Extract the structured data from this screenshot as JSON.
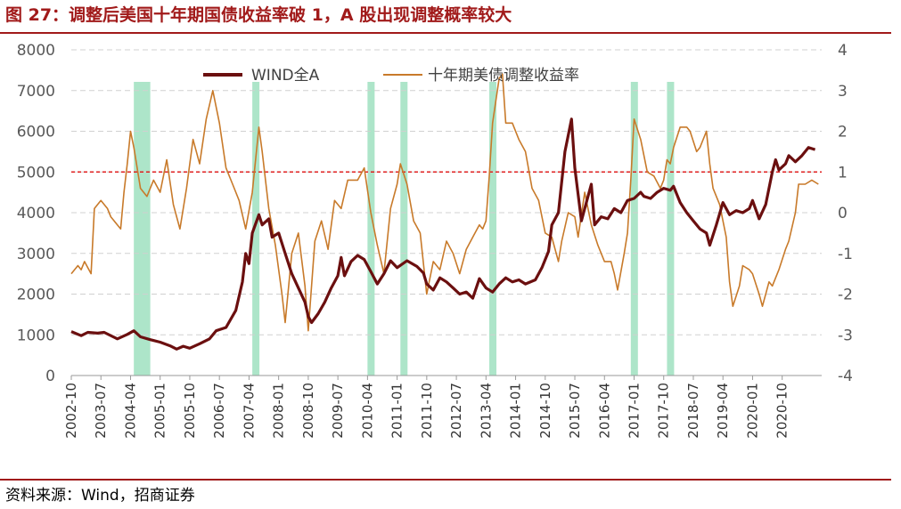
{
  "title": "图 27：调整后美国十年期国债收益率破 1，A 股出现调整概率较大",
  "source": "资料来源：Wind，招商证券",
  "colors": {
    "primary": "#6b0f0f",
    "secondary": "#c87a2a",
    "band": "#9fe0c0",
    "threshold": "#e02020",
    "title": "#a11a1a"
  },
  "chart_data": {
    "type": "line",
    "title": "",
    "xlabel": "",
    "ylabel": "",
    "ylim": [
      0,
      8000
    ],
    "y2lim": [
      -4,
      4
    ],
    "yticks": [
      0,
      1000,
      2000,
      3000,
      4000,
      5000,
      6000,
      7000,
      8000
    ],
    "y2ticks": [
      -4,
      -3,
      -2,
      -1,
      0,
      1,
      2,
      3,
      4
    ],
    "xlim": [
      "2002-10",
      "2021-10"
    ],
    "xticks": [
      "2002-10",
      "2003-07",
      "2004-04",
      "2005-01",
      "2005-10",
      "2006-07",
      "2007-04",
      "2008-01",
      "2008-10",
      "2009-07",
      "2010-04",
      "2011-01",
      "2011-10",
      "2012-07",
      "2013-04",
      "2014-01",
      "2014-10",
      "2015-07",
      "2016-04",
      "2017-01",
      "2017-10",
      "2018-07",
      "2019-04",
      "2020-01",
      "2020-10"
    ],
    "grid": "horizontal-dashed",
    "legend_position": "top",
    "threshold_line": {
      "axis": "right",
      "value": 1
    },
    "highlight_bands": [
      {
        "start": "2004-05",
        "end": "2004-10"
      },
      {
        "start": "2007-05",
        "end": "2007-07"
      },
      {
        "start": "2010-04",
        "end": "2010-06"
      },
      {
        "start": "2011-02",
        "end": "2011-04"
      },
      {
        "start": "2013-05",
        "end": "2013-07"
      },
      {
        "start": "2016-12",
        "end": "2017-02"
      },
      {
        "start": "2017-11",
        "end": "2018-01"
      }
    ],
    "series": [
      {
        "name": "WIND全A",
        "axis": "left",
        "points": [
          [
            "2002-10",
            1080
          ],
          [
            "2003-01",
            980
          ],
          [
            "2003-03",
            1060
          ],
          [
            "2003-06",
            1040
          ],
          [
            "2003-08",
            1060
          ],
          [
            "2003-12",
            900
          ],
          [
            "2004-03",
            1010
          ],
          [
            "2004-05",
            1100
          ],
          [
            "2004-07",
            950
          ],
          [
            "2004-10",
            880
          ],
          [
            "2005-01",
            820
          ],
          [
            "2005-04",
            730
          ],
          [
            "2005-06",
            650
          ],
          [
            "2005-08",
            720
          ],
          [
            "2005-10",
            670
          ],
          [
            "2006-01",
            780
          ],
          [
            "2006-04",
            900
          ],
          [
            "2006-06",
            1100
          ],
          [
            "2006-09",
            1180
          ],
          [
            "2006-12",
            1600
          ],
          [
            "2007-02",
            2300
          ],
          [
            "2007-03",
            3000
          ],
          [
            "2007-04",
            2750
          ],
          [
            "2007-05",
            3500
          ],
          [
            "2007-07",
            3950
          ],
          [
            "2007-08",
            3700
          ],
          [
            "2007-10",
            3850
          ],
          [
            "2007-11",
            3400
          ],
          [
            "2008-01",
            3500
          ],
          [
            "2008-03",
            3000
          ],
          [
            "2008-05",
            2500
          ],
          [
            "2008-07",
            2150
          ],
          [
            "2008-09",
            1800
          ],
          [
            "2008-10",
            1450
          ],
          [
            "2008-11",
            1300
          ],
          [
            "2009-01",
            1520
          ],
          [
            "2009-03",
            1800
          ],
          [
            "2009-05",
            2150
          ],
          [
            "2009-07",
            2450
          ],
          [
            "2009-08",
            2900
          ],
          [
            "2009-09",
            2450
          ],
          [
            "2009-11",
            2800
          ],
          [
            "2010-01",
            2950
          ],
          [
            "2010-03",
            2850
          ],
          [
            "2010-05",
            2550
          ],
          [
            "2010-07",
            2250
          ],
          [
            "2010-09",
            2500
          ],
          [
            "2010-11",
            2820
          ],
          [
            "2011-01",
            2650
          ],
          [
            "2011-04",
            2820
          ],
          [
            "2011-07",
            2680
          ],
          [
            "2011-09",
            2520
          ],
          [
            "2011-10",
            2250
          ],
          [
            "2011-12",
            2100
          ],
          [
            "2012-02",
            2400
          ],
          [
            "2012-04",
            2300
          ],
          [
            "2012-06",
            2150
          ],
          [
            "2012-08",
            2000
          ],
          [
            "2012-10",
            2050
          ],
          [
            "2012-12",
            1900
          ],
          [
            "2013-02",
            2380
          ],
          [
            "2013-04",
            2150
          ],
          [
            "2013-06",
            2050
          ],
          [
            "2013-08",
            2250
          ],
          [
            "2013-10",
            2400
          ],
          [
            "2013-12",
            2300
          ],
          [
            "2014-02",
            2350
          ],
          [
            "2014-04",
            2250
          ],
          [
            "2014-07",
            2350
          ],
          [
            "2014-09",
            2650
          ],
          [
            "2014-11",
            3050
          ],
          [
            "2014-12",
            3700
          ],
          [
            "2015-02",
            4000
          ],
          [
            "2015-04",
            5500
          ],
          [
            "2015-06",
            6300
          ],
          [
            "2015-07",
            5100
          ],
          [
            "2015-08",
            4450
          ],
          [
            "2015-09",
            3800
          ],
          [
            "2015-11",
            4400
          ],
          [
            "2015-12",
            4700
          ],
          [
            "2016-01",
            3700
          ],
          [
            "2016-03",
            3900
          ],
          [
            "2016-05",
            3850
          ],
          [
            "2016-07",
            4100
          ],
          [
            "2016-09",
            4000
          ],
          [
            "2016-11",
            4300
          ],
          [
            "2017-01",
            4350
          ],
          [
            "2017-03",
            4500
          ],
          [
            "2017-04",
            4400
          ],
          [
            "2017-06",
            4350
          ],
          [
            "2017-08",
            4500
          ],
          [
            "2017-10",
            4600
          ],
          [
            "2017-12",
            4550
          ],
          [
            "2018-01",
            4650
          ],
          [
            "2018-03",
            4250
          ],
          [
            "2018-05",
            4000
          ],
          [
            "2018-07",
            3800
          ],
          [
            "2018-09",
            3600
          ],
          [
            "2018-11",
            3500
          ],
          [
            "2018-12",
            3200
          ],
          [
            "2019-02",
            3700
          ],
          [
            "2019-04",
            4250
          ],
          [
            "2019-06",
            3950
          ],
          [
            "2019-08",
            4050
          ],
          [
            "2019-10",
            4000
          ],
          [
            "2019-12",
            4100
          ],
          [
            "2020-01",
            4300
          ],
          [
            "2020-03",
            3850
          ],
          [
            "2020-05",
            4200
          ],
          [
            "2020-07",
            5000
          ],
          [
            "2020-08",
            5300
          ],
          [
            "2020-09",
            5050
          ],
          [
            "2020-11",
            5200
          ],
          [
            "2020-12",
            5400
          ],
          [
            "2021-02",
            5250
          ],
          [
            "2021-04",
            5400
          ],
          [
            "2021-06",
            5600
          ],
          [
            "2021-08",
            5550
          ]
        ]
      },
      {
        "name": "十年期美债调整收益率",
        "axis": "right",
        "points": [
          [
            "2002-10",
            -1.5
          ],
          [
            "2002-12",
            -1.3
          ],
          [
            "2003-01",
            -1.4
          ],
          [
            "2003-02",
            -1.2
          ],
          [
            "2003-04",
            -1.5
          ],
          [
            "2003-05",
            0.1
          ],
          [
            "2003-07",
            0.3
          ],
          [
            "2003-09",
            0.1
          ],
          [
            "2003-10",
            -0.1
          ],
          [
            "2003-12",
            -0.3
          ],
          [
            "2004-01",
            -0.4
          ],
          [
            "2004-02",
            0.5
          ],
          [
            "2004-03",
            1.2
          ],
          [
            "2004-04",
            2.0
          ],
          [
            "2004-05",
            1.6
          ],
          [
            "2004-07",
            0.6
          ],
          [
            "2004-09",
            0.4
          ],
          [
            "2004-11",
            0.8
          ],
          [
            "2005-01",
            0.5
          ],
          [
            "2005-03",
            1.3
          ],
          [
            "2005-05",
            0.2
          ],
          [
            "2005-07",
            -0.4
          ],
          [
            "2005-09",
            0.6
          ],
          [
            "2005-11",
            1.8
          ],
          [
            "2006-01",
            1.2
          ],
          [
            "2006-03",
            2.3
          ],
          [
            "2006-05",
            3.0
          ],
          [
            "2006-07",
            2.2
          ],
          [
            "2006-09",
            1.1
          ],
          [
            "2006-11",
            0.7
          ],
          [
            "2007-01",
            0.3
          ],
          [
            "2007-03",
            -0.4
          ],
          [
            "2007-05",
            0.5
          ],
          [
            "2007-07",
            2.1
          ],
          [
            "2007-08",
            1.5
          ],
          [
            "2007-10",
            0.1
          ],
          [
            "2007-12",
            -0.8
          ],
          [
            "2008-02",
            -2.0
          ],
          [
            "2008-03",
            -2.7
          ],
          [
            "2008-05",
            -1.0
          ],
          [
            "2008-07",
            -0.5
          ],
          [
            "2008-09",
            -1.8
          ],
          [
            "2008-10",
            -2.9
          ],
          [
            "2008-12",
            -0.7
          ],
          [
            "2009-02",
            -0.2
          ],
          [
            "2009-04",
            -0.9
          ],
          [
            "2009-06",
            0.3
          ],
          [
            "2009-08",
            0.1
          ],
          [
            "2009-10",
            0.8
          ],
          [
            "2010-01",
            0.8
          ],
          [
            "2010-03",
            1.1
          ],
          [
            "2010-05",
            0.0
          ],
          [
            "2010-07",
            -0.8
          ],
          [
            "2010-09",
            -1.5
          ],
          [
            "2010-11",
            0.1
          ],
          [
            "2011-01",
            0.7
          ],
          [
            "2011-02",
            1.2
          ],
          [
            "2011-04",
            0.7
          ],
          [
            "2011-06",
            -0.2
          ],
          [
            "2011-08",
            -0.5
          ],
          [
            "2011-10",
            -2.0
          ],
          [
            "2011-12",
            -1.2
          ],
          [
            "2012-02",
            -1.4
          ],
          [
            "2012-04",
            -0.7
          ],
          [
            "2012-06",
            -1.0
          ],
          [
            "2012-08",
            -1.5
          ],
          [
            "2012-10",
            -0.9
          ],
          [
            "2012-12",
            -0.6
          ],
          [
            "2013-02",
            -0.3
          ],
          [
            "2013-03",
            -0.4
          ],
          [
            "2013-04",
            -0.2
          ],
          [
            "2013-05",
            0.9
          ],
          [
            "2013-06",
            2.2
          ],
          [
            "2013-08",
            3.3
          ],
          [
            "2013-09",
            3.4
          ],
          [
            "2013-10",
            2.2
          ],
          [
            "2013-12",
            2.2
          ],
          [
            "2014-02",
            1.8
          ],
          [
            "2014-04",
            1.5
          ],
          [
            "2014-06",
            0.6
          ],
          [
            "2014-08",
            0.3
          ],
          [
            "2014-10",
            -0.5
          ],
          [
            "2014-12",
            -0.6
          ],
          [
            "2015-02",
            -1.2
          ],
          [
            "2015-03",
            -0.7
          ],
          [
            "2015-05",
            0.0
          ],
          [
            "2015-07",
            -0.1
          ],
          [
            "2015-08",
            -0.6
          ],
          [
            "2015-10",
            0.5
          ],
          [
            "2015-12",
            -0.3
          ],
          [
            "2016-02",
            -0.8
          ],
          [
            "2016-04",
            -1.2
          ],
          [
            "2016-06",
            -1.2
          ],
          [
            "2016-07",
            -1.5
          ],
          [
            "2016-08",
            -1.9
          ],
          [
            "2016-10",
            -1.0
          ],
          [
            "2016-11",
            -0.5
          ],
          [
            "2016-12",
            0.8
          ],
          [
            "2017-01",
            2.3
          ],
          [
            "2017-03",
            1.8
          ],
          [
            "2017-05",
            1.0
          ],
          [
            "2017-07",
            0.9
          ],
          [
            "2017-09",
            0.6
          ],
          [
            "2017-10",
            0.8
          ],
          [
            "2017-11",
            1.3
          ],
          [
            "2017-12",
            1.2
          ],
          [
            "2018-01",
            1.6
          ],
          [
            "2018-03",
            2.1
          ],
          [
            "2018-05",
            2.1
          ],
          [
            "2018-06",
            2.0
          ],
          [
            "2018-08",
            1.5
          ],
          [
            "2018-09",
            1.6
          ],
          [
            "2018-11",
            2.0
          ],
          [
            "2018-12",
            1.2
          ],
          [
            "2019-01",
            0.6
          ],
          [
            "2019-03",
            0.2
          ],
          [
            "2019-05",
            -0.6
          ],
          [
            "2019-06",
            -1.7
          ],
          [
            "2019-07",
            -2.3
          ],
          [
            "2019-09",
            -1.8
          ],
          [
            "2019-10",
            -1.3
          ],
          [
            "2019-12",
            -1.4
          ],
          [
            "2020-01",
            -1.5
          ],
          [
            "2020-03",
            -2.0
          ],
          [
            "2020-04",
            -2.3
          ],
          [
            "2020-06",
            -1.7
          ],
          [
            "2020-07",
            -1.8
          ],
          [
            "2020-09",
            -1.4
          ],
          [
            "2020-11",
            -0.9
          ],
          [
            "2020-12",
            -0.7
          ],
          [
            "2021-02",
            0.0
          ],
          [
            "2021-03",
            0.7
          ],
          [
            "2021-05",
            0.7
          ],
          [
            "2021-07",
            0.8
          ],
          [
            "2021-09",
            0.7
          ]
        ]
      }
    ]
  }
}
